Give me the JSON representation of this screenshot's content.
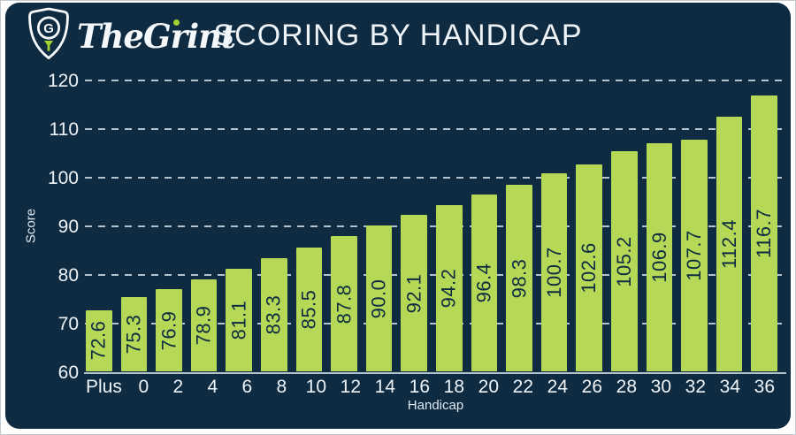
{
  "header": {
    "brand": "TheGrint",
    "title": "SCORING BY HANDICAP"
  },
  "colors": {
    "background": "#0e2b42",
    "bar": "#b5d957",
    "text": "#eef3f7",
    "grid": "#c7d3dc",
    "logo_accent": "#a4d233"
  },
  "chart_data": {
    "type": "bar",
    "title": "SCORING BY HANDICAP",
    "xlabel": "Handicap",
    "ylabel": "Score",
    "ylim": [
      60,
      120
    ],
    "yticks": [
      60,
      70,
      80,
      90,
      100,
      110,
      120
    ],
    "grid": "dashed-horizontal",
    "legend": "none",
    "categories": [
      "Plus",
      "0",
      "2",
      "4",
      "6",
      "8",
      "10",
      "12",
      "14",
      "16",
      "18",
      "20",
      "22",
      "24",
      "26",
      "28",
      "30",
      "32",
      "34",
      "36"
    ],
    "values": [
      72.6,
      75.3,
      76.9,
      78.9,
      81.1,
      83.3,
      85.5,
      87.8,
      90.0,
      92.1,
      94.2,
      96.4,
      98.3,
      100.7,
      102.6,
      105.2,
      106.9,
      107.7,
      112.4,
      116.7
    ],
    "value_labels": [
      "72.6",
      "75.3",
      "76.9",
      "78.9",
      "81.1",
      "83.3",
      "85.5",
      "87.8",
      "90.0",
      "92.1",
      "94.2",
      "96.4",
      "98.3",
      "100.7",
      "102.6",
      "105.2",
      "106.9",
      "107.7",
      "112.4",
      "116.7"
    ]
  }
}
